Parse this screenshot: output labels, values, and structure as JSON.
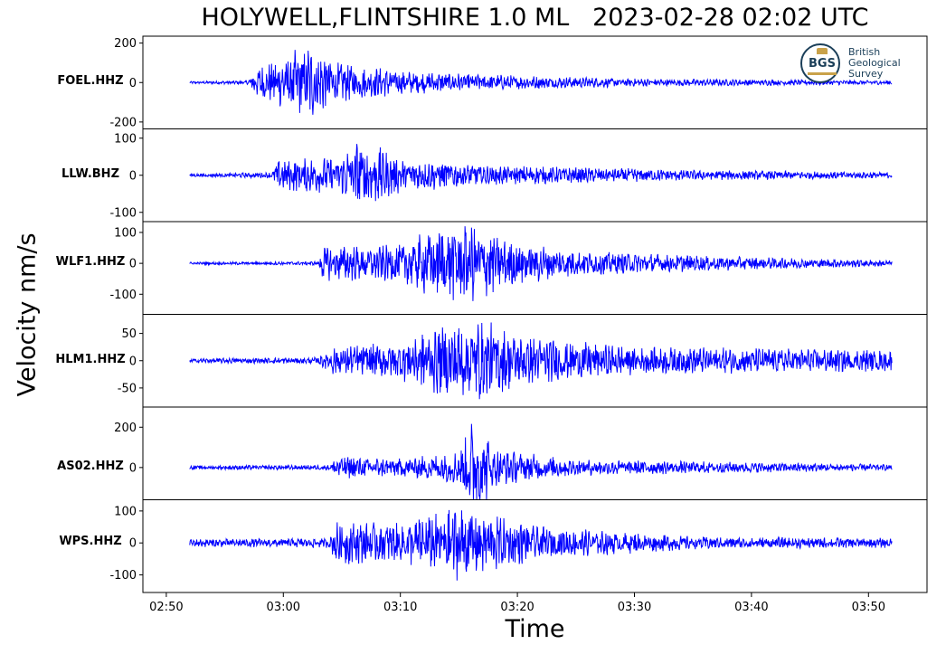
{
  "chart_data": {
    "type": "line",
    "title": "HOLYWELL,FLINTSHIRE 1.0 ML   2023-02-28 02:02 UTC",
    "xlabel": "Time",
    "ylabel": "Velocity nm/s",
    "x_range": [
      "02:48:00",
      "03:55:00"
    ],
    "x_ticks": [
      "02:50",
      "03:00",
      "03:10",
      "03:20",
      "03:30",
      "03:40",
      "03:50"
    ],
    "trace_start": "02:52:00",
    "trace_end": "03:52:00",
    "line_color": "#0000ff",
    "grid": false,
    "series": [
      {
        "name": "FOEL.HHZ",
        "ylim": [
          -235,
          235
        ],
        "y_ticks": [
          200,
          0,
          -200
        ],
        "y_tick_labels": [
          "200",
          "0",
          "-200"
        ],
        "noise": 4,
        "envelope": [
          [
            "02:52:00",
            6
          ],
          [
            "02:57:00",
            10
          ],
          [
            "02:57:30",
            70
          ],
          [
            "03:01:00",
            160
          ],
          [
            "03:02:00",
            200
          ],
          [
            "03:03:00",
            170
          ],
          [
            "03:05:00",
            100
          ],
          [
            "03:10:00",
            60
          ],
          [
            "03:20:00",
            35
          ],
          [
            "03:30:00",
            20
          ],
          [
            "03:52:00",
            10
          ]
        ],
        "min": -210,
        "max": 210
      },
      {
        "name": "LLW.BHZ",
        "ylim": [
          -125,
          125
        ],
        "y_ticks": [
          100,
          0,
          -100
        ],
        "y_tick_labels": [
          "100",
          "0",
          "-100"
        ],
        "noise": 3,
        "envelope": [
          [
            "02:52:00",
            4
          ],
          [
            "02:59:00",
            8
          ],
          [
            "02:59:30",
            40
          ],
          [
            "03:05:00",
            50
          ],
          [
            "03:06:00",
            100
          ],
          [
            "03:08:00",
            80
          ],
          [
            "03:10:00",
            45
          ],
          [
            "03:20:00",
            25
          ],
          [
            "03:35:00",
            14
          ],
          [
            "03:52:00",
            8
          ]
        ],
        "min": -115,
        "max": 105
      },
      {
        "name": "WLF1.HHZ",
        "ylim": [
          -165,
          135
        ],
        "y_ticks": [
          100,
          0,
          -100
        ],
        "y_tick_labels": [
          "100",
          "0",
          "-100"
        ],
        "noise": 3,
        "envelope": [
          [
            "02:52:00",
            4
          ],
          [
            "03:03:00",
            6
          ],
          [
            "03:03:20",
            55
          ],
          [
            "03:10:00",
            60
          ],
          [
            "03:13:00",
            120
          ],
          [
            "03:16:00",
            130
          ],
          [
            "03:19:00",
            80
          ],
          [
            "03:25:00",
            40
          ],
          [
            "03:40:00",
            20
          ],
          [
            "03:52:00",
            10
          ]
        ],
        "min": -165,
        "max": 130
      },
      {
        "name": "HLM1.HHZ",
        "ylim": [
          -85,
          85
        ],
        "y_ticks": [
          50,
          0,
          -50
        ],
        "y_tick_labels": [
          "50",
          "0",
          "-50"
        ],
        "noise": 4,
        "envelope": [
          [
            "02:52:00",
            4
          ],
          [
            "03:03:00",
            6
          ],
          [
            "03:04:00",
            25
          ],
          [
            "03:10:00",
            35
          ],
          [
            "03:13:00",
            60
          ],
          [
            "03:17:00",
            75
          ],
          [
            "03:20:00",
            45
          ],
          [
            "03:30:00",
            25
          ],
          [
            "03:52:00",
            20
          ]
        ],
        "min": -80,
        "max": 80
      },
      {
        "name": "AS02.HHZ",
        "ylim": [
          -160,
          300
        ],
        "y_ticks": [
          200,
          0
        ],
        "y_tick_labels": [
          "200",
          "0"
        ],
        "noise": 8,
        "envelope": [
          [
            "02:52:00",
            10
          ],
          [
            "03:04:00",
            12
          ],
          [
            "03:04:30",
            60
          ],
          [
            "03:10:00",
            45
          ],
          [
            "03:15:00",
            80
          ],
          [
            "03:16:30",
            280
          ],
          [
            "03:18:00",
            90
          ],
          [
            "03:25:00",
            40
          ],
          [
            "03:52:00",
            15
          ]
        ],
        "min": -160,
        "max": 300
      },
      {
        "name": "WPS.HHZ",
        "ylim": [
          -155,
          135
        ],
        "y_ticks": [
          100,
          0,
          -100
        ],
        "y_tick_labels": [
          "100",
          "0",
          "-100"
        ],
        "noise": 8,
        "envelope": [
          [
            "02:52:00",
            12
          ],
          [
            "03:04:00",
            15
          ],
          [
            "03:04:30",
            70
          ],
          [
            "03:10:00",
            60
          ],
          [
            "03:15:00",
            115
          ],
          [
            "03:17:00",
            100
          ],
          [
            "03:22:00",
            50
          ],
          [
            "03:35:00",
            20
          ],
          [
            "03:52:00",
            15
          ]
        ],
        "min": -140,
        "max": 115
      }
    ]
  },
  "logo": {
    "badge": "BGS",
    "lines": [
      "British",
      "Geological",
      "Survey"
    ]
  }
}
